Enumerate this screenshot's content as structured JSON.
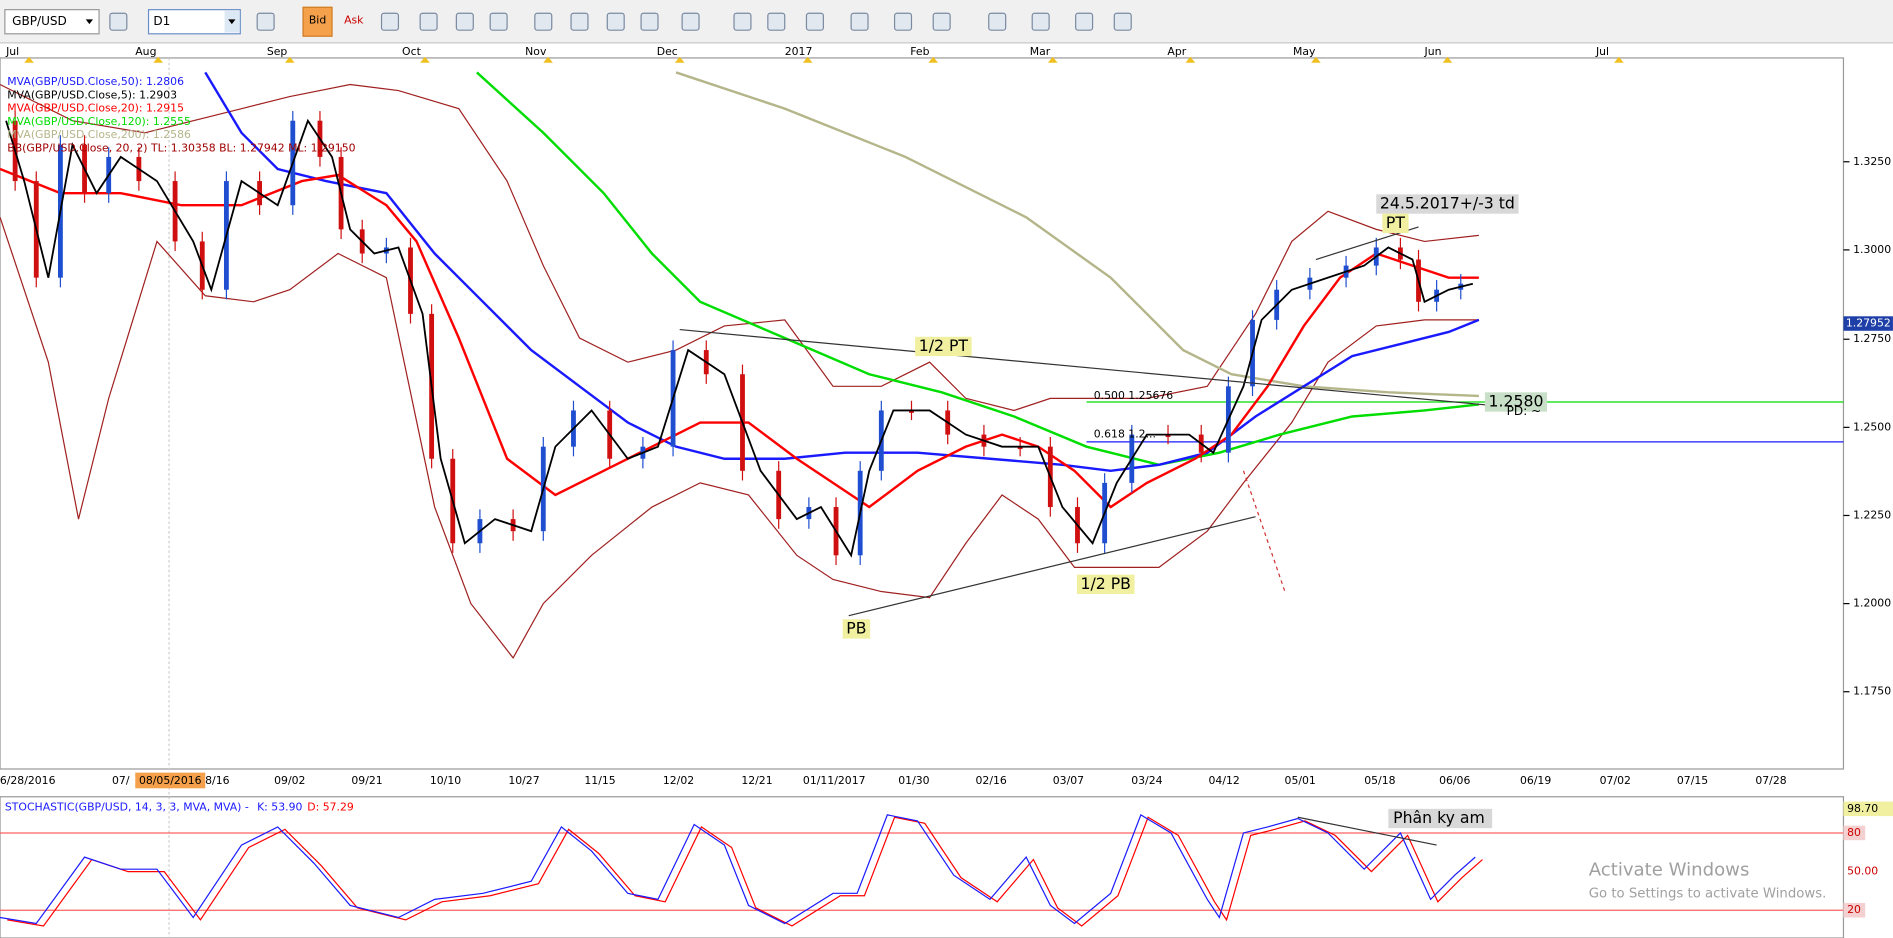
{
  "toolbar": {
    "symbol": "GBP/USD",
    "timeframe": "D1",
    "bid": "Bid",
    "ask": "Ask"
  },
  "top_axis": [
    "Jul",
    "Aug",
    "Sep",
    "Oct",
    "Nov",
    "Dec",
    "2017",
    "Feb",
    "Mar",
    "Apr",
    "May",
    "Jun",
    "Jul"
  ],
  "legend": [
    {
      "text": "MVA(GBP/USD.Close,50): 1.2806",
      "color": "#1a1aff"
    },
    {
      "text": "MVA(GBP/USD.Close,5): 1.2903",
      "color": "#000000"
    },
    {
      "text": "MVA(GBP/USD.Close,20): 1.2915",
      "color": "#ff0000"
    },
    {
      "text": "MVA(GBP/USD.Close,120): 1.2555",
      "color": "#00dd00"
    },
    {
      "text": "MVA(GBP/USD.Close,200): 1.2586",
      "color": "#b5b58a"
    },
    {
      "text": "BB(GBP/USD.Close, 20, 2)  TL: 1.30358  BL: 1.27942  ML: 1.29150",
      "color": "#a00000"
    }
  ],
  "price_axis": [
    "1.3250",
    "1.3000",
    "1.2750",
    "1.2500",
    "1.2250",
    "1.2000",
    "1.1750"
  ],
  "current_price": "1.27952",
  "annotations": {
    "date_target": "24.5.2017+/-3 td",
    "pt": "PT",
    "half_pt": "1/2 PT",
    "half_pb": "1/2 PB",
    "pb": "PB",
    "fib_500": "0.500 1.25676",
    "fib_618": "0.618 1.2...",
    "level": "1.2580",
    "pd": "PD: ~"
  },
  "date_axis": [
    "06/28/2016",
    "07/",
    "08/05/2016",
    "8/16",
    "09/02",
    "09/21",
    "10/10",
    "10/27",
    "11/15",
    "12/02",
    "12/21",
    "01/11/2017",
    "01/30",
    "02/16",
    "03/07",
    "03/24",
    "04/12",
    "05/01",
    "05/18",
    "06/06",
    "06/19",
    "07/02",
    "07/15",
    "07/28"
  ],
  "stochastic": {
    "label": "STOCHASTIC(GBP/USD, 14, 3, 3, MVA, MVA) - ",
    "k": "K: 53.90",
    "d": "D: 57.29",
    "levels": [
      "98.70",
      "80",
      "50.00",
      "20"
    ],
    "note": "Phân ky am"
  },
  "watermark": {
    "title": "Activate Windows",
    "subtitle": "Go to Settings to activate Windows."
  }
}
